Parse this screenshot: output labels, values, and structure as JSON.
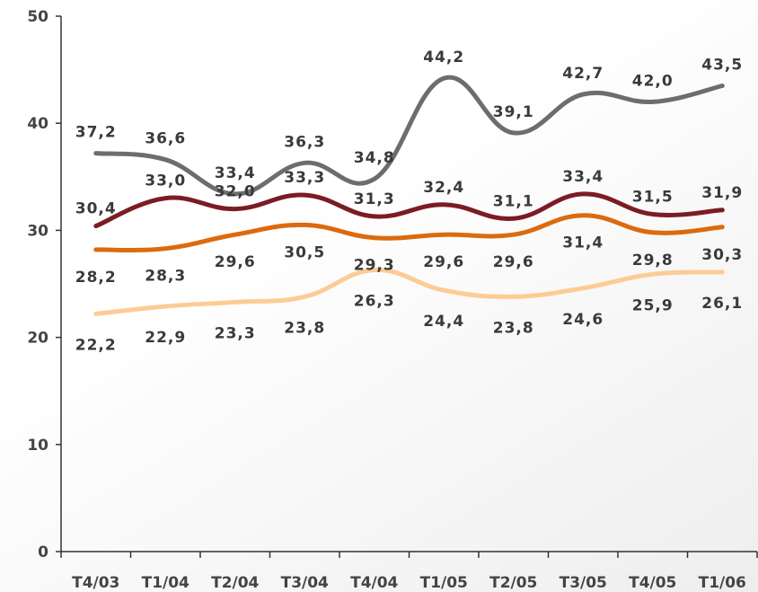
{
  "chart_data": {
    "type": "line",
    "title": "",
    "xlabel": "",
    "ylabel": "",
    "categories": [
      "T4/03",
      "T1/04",
      "T2/04",
      "T3/04",
      "T4/04",
      "T1/05",
      "T2/05",
      "T3/05",
      "T4/05",
      "T1/06"
    ],
    "ylim": [
      0,
      50
    ],
    "yticks": [
      0,
      10,
      20,
      30,
      40,
      50
    ],
    "grid": false,
    "legend": "none",
    "series": [
      {
        "color": "#6d6d6d",
        "values": [
          37.2,
          36.6,
          33.4,
          36.3,
          34.8,
          44.2,
          39.1,
          42.7,
          42.0,
          43.5
        ],
        "labels": [
          "37,2",
          "36,6",
          "33,4",
          "36,3",
          "34,8",
          "44,2",
          "39,1",
          "42,7",
          "42,0",
          "43,5"
        ]
      },
      {
        "color": "#7b1c24",
        "values": [
          30.4,
          33.0,
          32.0,
          33.3,
          31.3,
          32.4,
          31.1,
          33.4,
          31.5,
          31.9
        ],
        "labels": [
          "30,4",
          "33,0",
          "32,0",
          "33,3",
          "31,3",
          "32,4",
          "31,1",
          "33,4",
          "31,5",
          "31,9"
        ]
      },
      {
        "color": "#dc6a0e",
        "values": [
          28.2,
          28.3,
          29.6,
          30.5,
          29.3,
          29.6,
          29.6,
          31.4,
          29.8,
          30.3
        ],
        "labels": [
          "28,2",
          "28,3",
          "29,6",
          "30,5",
          "29,3",
          "29,6",
          "29,6",
          "31,4",
          "29,8",
          "30,3"
        ]
      },
      {
        "color": "#fccc96",
        "values": [
          22.2,
          22.9,
          23.3,
          23.8,
          26.3,
          24.4,
          23.8,
          24.6,
          25.9,
          26.1
        ],
        "labels": [
          "22,2",
          "22,9",
          "23,3",
          "23,8",
          "26,3",
          "24,4",
          "23,8",
          "24,6",
          "25,9",
          "26,1"
        ]
      }
    ]
  }
}
